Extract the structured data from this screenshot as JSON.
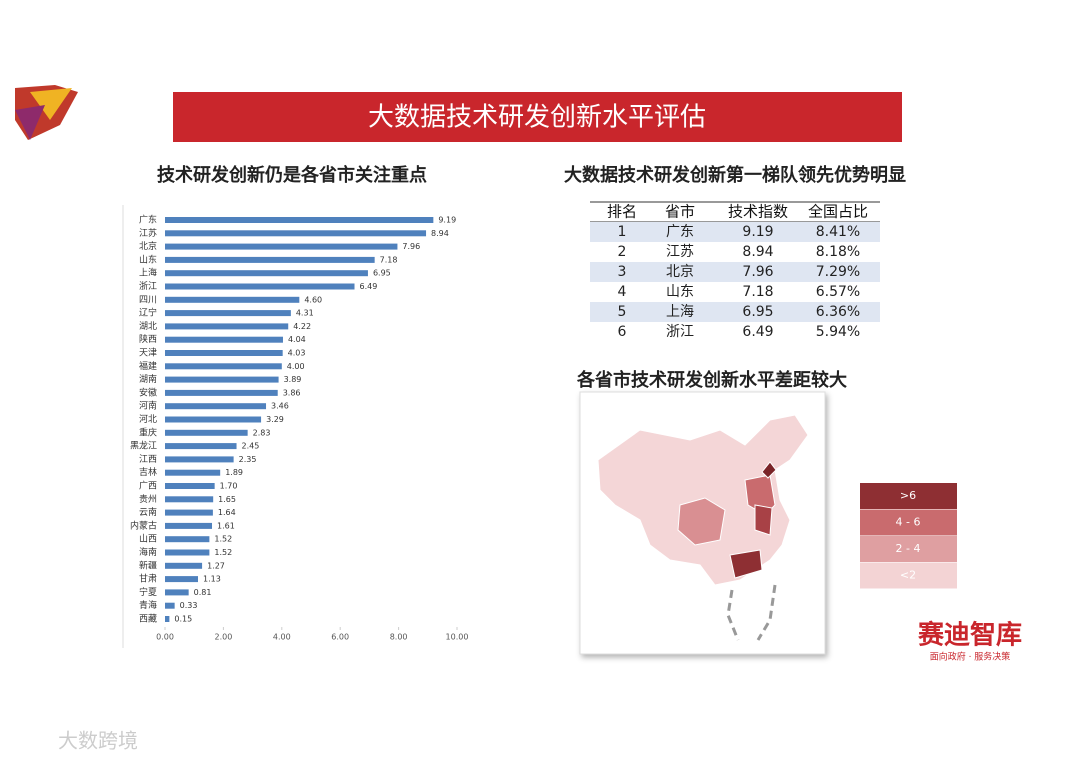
{
  "header": {
    "title": "大数据技术研发创新水平评估"
  },
  "chart_data": {
    "type": "hbar",
    "title": "技术研发创新仍是各省市关注重点",
    "color": "#4f81bd",
    "categories": [
      "广东",
      "江苏",
      "北京",
      "山东",
      "上海",
      "浙江",
      "四川",
      "辽宁",
      "湖北",
      "陕西",
      "天津",
      "福建",
      "湖南",
      "安徽",
      "河南",
      "河北",
      "重庆",
      "黑龙江",
      "江西",
      "吉林",
      "广西",
      "贵州",
      "云南",
      "内蒙古",
      "山西",
      "海南",
      "新疆",
      "甘肃",
      "宁夏",
      "青海",
      "西藏"
    ],
    "values": [
      9.19,
      8.94,
      7.96,
      7.18,
      6.95,
      6.49,
      4.6,
      4.31,
      4.22,
      4.04,
      4.03,
      4.0,
      3.89,
      3.86,
      3.46,
      3.29,
      2.83,
      2.45,
      2.35,
      1.89,
      1.7,
      1.65,
      1.64,
      1.61,
      1.52,
      1.52,
      1.27,
      1.13,
      0.81,
      0.33,
      0.15
    ],
    "value_labels": [
      "9.19",
      "8.94",
      "7.96",
      "7.18",
      "6.95",
      "6.49",
      "4.60",
      "4.31",
      "4.22",
      "4.04",
      "4.03",
      "4.00",
      "3.89",
      "3.86",
      "3.46",
      "3.29",
      "2.83",
      "2.45",
      "2.35",
      "1.89",
      "1.70",
      "1.65",
      "1.64",
      "1.61",
      "1.52",
      "1.52",
      "1.27",
      "1.13",
      "0.81",
      "0.33",
      "0.15"
    ],
    "xlim": [
      0,
      10
    ],
    "xticks": [
      {
        "value": 0,
        "label": "0.00"
      },
      {
        "value": 2,
        "label": "2.00"
      },
      {
        "value": 4,
        "label": "4.00"
      },
      {
        "value": 6,
        "label": "6.00"
      },
      {
        "value": 8,
        "label": "8.00"
      },
      {
        "value": 10,
        "label": "10.00"
      }
    ]
  },
  "table": {
    "title": "大数据技术研发创新第一梯队领先优势明显",
    "columns": [
      "排名",
      "省市",
      "技术指数",
      "全国占比"
    ],
    "rows": [
      [
        "1",
        "广东",
        "9.19",
        "8.41%"
      ],
      [
        "2",
        "江苏",
        "8.94",
        "8.18%"
      ],
      [
        "3",
        "北京",
        "7.96",
        "7.29%"
      ],
      [
        "4",
        "山东",
        "7.18",
        "6.57%"
      ],
      [
        "5",
        "上海",
        "6.95",
        "6.36%"
      ],
      [
        "6",
        "浙江",
        "6.49",
        "5.94%"
      ]
    ]
  },
  "map": {
    "title": "各省市技术研发创新水平差距较大",
    "legend": [
      {
        "label": ">6",
        "color": "#8e2f33"
      },
      {
        "label": "4 - 6",
        "color": "#c96b6e"
      },
      {
        "label": "2 - 4",
        "color": "#df9fa1"
      },
      {
        "label": "<2",
        "color": "#f3d3d4"
      }
    ]
  },
  "logo": {
    "name": "赛迪智库",
    "slogan": "面向政府 · 服务决策"
  },
  "watermark": "大数跨境"
}
